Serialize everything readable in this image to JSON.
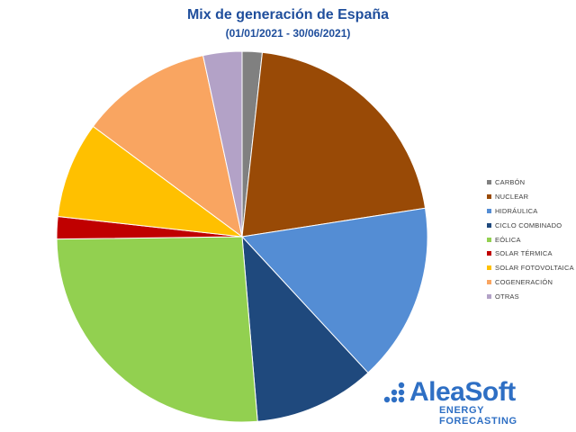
{
  "chart_data": {
    "type": "pie",
    "title": "Mix de generación de España",
    "subtitle": "(01/01/2021 - 30/06/2021)",
    "legend_position": "right",
    "categories": [
      "CARBÓN",
      "NUCLEAR",
      "HIDRÁULICA",
      "CICLO COMBINADO",
      "EÓLICA",
      "SOLAR TÉRMICA",
      "SOLAR FOTOVOLTAICA",
      "COGENERACIÓN",
      "OTRAS"
    ],
    "values": [
      1.7,
      20.3,
      15.2,
      10.3,
      25.5,
      1.9,
      8.2,
      11.2,
      3.3
    ],
    "colors": [
      "#808080",
      "#994a06",
      "#548dd4",
      "#1f497d",
      "#92d050",
      "#c00000",
      "#ffc000",
      "#f9a561",
      "#b3a2c7"
    ],
    "start_angle_deg": 0
  },
  "logo": {
    "name": "AleaSoft",
    "tagline": "ENERGY FORECASTING",
    "color": "#2e6fc4"
  }
}
